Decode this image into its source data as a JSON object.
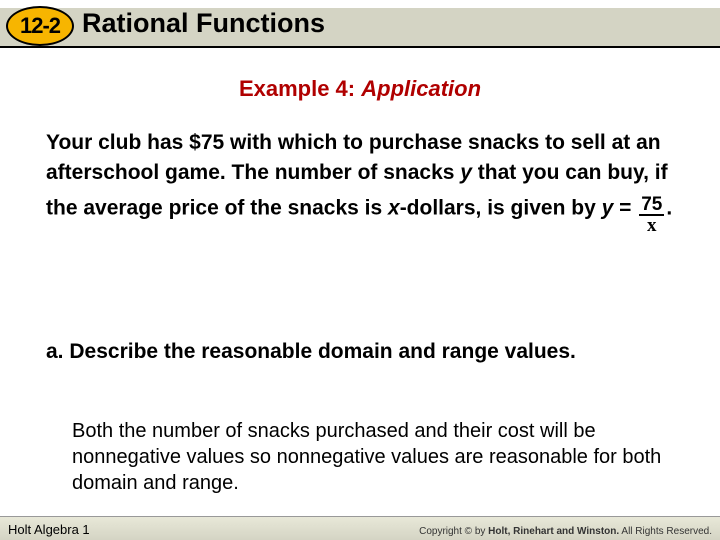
{
  "header": {
    "lesson_number": "12-2",
    "title": "Rational Functions",
    "badge_bg": "#f7b500",
    "bar_bg": "#d4d4c4"
  },
  "example": {
    "label": "Example 4:",
    "subtitle": "Application",
    "heading_color": "#b00000"
  },
  "problem": {
    "line1": "Your club has $75 with which to purchase snacks to sell at an afterschool game. The number of snacks ",
    "var_y": "y",
    "line2": " that you can buy, if the average price of the snacks is ",
    "var_x": "x",
    "line3": "-dollars, is given by ",
    "eq_lhs_var": "y",
    "eq_eq": " = ",
    "frac_num": "75",
    "frac_den": "x",
    "period": "."
  },
  "part_a": {
    "label": "a. ",
    "text": "Describe the reasonable domain and range values."
  },
  "answer": {
    "text": "Both the number of snacks purchased and their cost will be nonnegative values so nonnegative values are reasonable for both domain and range."
  },
  "footer": {
    "left": "Holt Algebra 1",
    "right_prefix": "Copyright © by ",
    "right_bold": "Holt, Rinehart and Winston.",
    "right_suffix": " All Rights Reserved."
  }
}
